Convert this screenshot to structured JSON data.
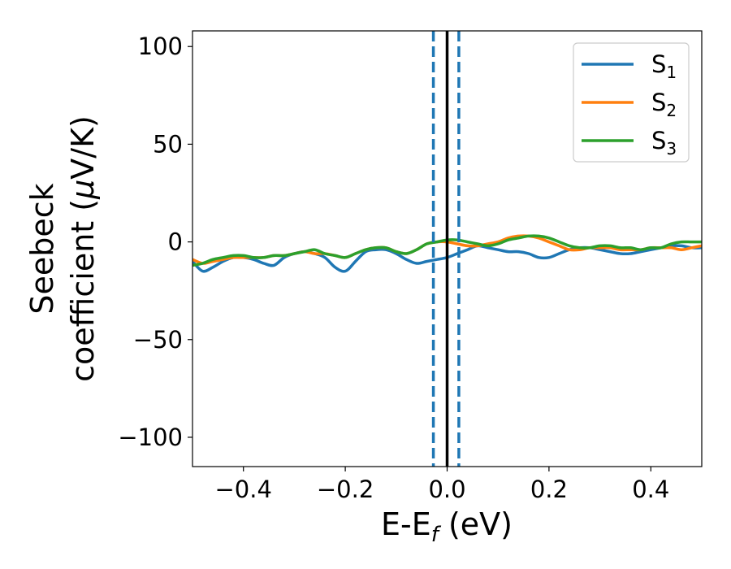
{
  "chart_data": {
    "type": "line",
    "title": "",
    "xlabel": {
      "main": "E-E",
      "sub": "f",
      "unit": " (eV)"
    },
    "ylabel": {
      "line1": "Seebeck",
      "line2": "coefficient  (",
      "mu": "μ",
      "line2_end": "V/K)"
    },
    "xlim": [
      -0.5,
      0.5
    ],
    "ylim": [
      -115,
      108
    ],
    "xticks": [
      -0.4,
      -0.2,
      0.0,
      0.2,
      0.4
    ],
    "xtick_labels": [
      "−0.4",
      "−0.2",
      "0.0",
      "0.2",
      "0.4"
    ],
    "yticks": [
      100,
      50,
      0,
      -50,
      -100
    ],
    "ytick_labels": [
      "100",
      "50",
      "0",
      "−50",
      "−100"
    ],
    "grid": false,
    "legend_position": "top-right",
    "vertical_lines": [
      {
        "x": -0.027,
        "color": "#1f77b4",
        "style": "dashed"
      },
      {
        "x": 0.0,
        "color": "#000000",
        "style": "solid"
      },
      {
        "x": 0.023,
        "color": "#1f77b4",
        "style": "dashed"
      }
    ],
    "series": [
      {
        "name": "S",
        "sub": "1",
        "color": "#1f77b4",
        "x": [
          -0.5,
          -0.48,
          -0.46,
          -0.44,
          -0.42,
          -0.4,
          -0.38,
          -0.36,
          -0.34,
          -0.32,
          -0.3,
          -0.28,
          -0.26,
          -0.24,
          -0.22,
          -0.2,
          -0.18,
          -0.16,
          -0.14,
          -0.12,
          -0.1,
          -0.08,
          -0.06,
          -0.04,
          -0.02,
          0.0,
          0.02,
          0.04,
          0.06,
          0.08,
          0.1,
          0.12,
          0.14,
          0.16,
          0.18,
          0.2,
          0.22,
          0.24,
          0.26,
          0.28,
          0.3,
          0.32,
          0.34,
          0.36,
          0.38,
          0.4,
          0.42,
          0.44,
          0.46,
          0.48,
          0.5
        ],
        "y": [
          -10,
          -15,
          -13,
          -10,
          -8,
          -8,
          -9,
          -11,
          -12,
          -8,
          -6,
          -5,
          -6,
          -8,
          -13,
          -15,
          -10,
          -5,
          -4,
          -4,
          -6,
          -9,
          -11,
          -10,
          -9,
          -8,
          -6,
          -4,
          -2,
          -3,
          -4,
          -5,
          -5,
          -6,
          -8,
          -8,
          -6,
          -4,
          -3,
          -3,
          -4,
          -5,
          -6,
          -6,
          -5,
          -4,
          -3,
          -2,
          -2,
          -3,
          -3
        ]
      },
      {
        "name": "S",
        "sub": "2",
        "color": "#ff7f0e",
        "x": [
          -0.5,
          -0.48,
          -0.46,
          -0.44,
          -0.42,
          -0.4,
          -0.38,
          -0.36,
          -0.34,
          -0.32,
          -0.3,
          -0.28,
          -0.26,
          -0.24,
          -0.22,
          -0.2,
          -0.18,
          -0.16,
          -0.14,
          -0.12,
          -0.1,
          -0.08,
          -0.06,
          -0.04,
          -0.02,
          0.0,
          0.02,
          0.04,
          0.06,
          0.08,
          0.1,
          0.12,
          0.14,
          0.16,
          0.18,
          0.2,
          0.22,
          0.24,
          0.26,
          0.28,
          0.3,
          0.32,
          0.34,
          0.36,
          0.38,
          0.4,
          0.42,
          0.44,
          0.46,
          0.48,
          0.5
        ],
        "y": [
          -9,
          -11,
          -10,
          -9,
          -8,
          -8,
          -8,
          -8,
          -7,
          -7,
          -6,
          -5,
          -6,
          -6,
          -7,
          -8,
          -6,
          -4,
          -3,
          -3,
          -5,
          -6,
          -4,
          -1,
          0,
          0,
          -1,
          -2,
          -2,
          -1,
          0,
          2,
          3,
          3,
          2,
          0,
          -2,
          -4,
          -4,
          -3,
          -3,
          -3,
          -4,
          -4,
          -4,
          -3,
          -3,
          -3,
          -4,
          -3,
          -2
        ]
      },
      {
        "name": "S",
        "sub": "3",
        "color": "#2ca02c",
        "x": [
          -0.5,
          -0.48,
          -0.46,
          -0.44,
          -0.42,
          -0.4,
          -0.38,
          -0.36,
          -0.34,
          -0.32,
          -0.3,
          -0.28,
          -0.26,
          -0.24,
          -0.22,
          -0.2,
          -0.18,
          -0.16,
          -0.14,
          -0.12,
          -0.1,
          -0.08,
          -0.06,
          -0.04,
          -0.02,
          0.0,
          0.02,
          0.04,
          0.06,
          0.08,
          0.1,
          0.12,
          0.14,
          0.16,
          0.18,
          0.2,
          0.22,
          0.24,
          0.26,
          0.28,
          0.3,
          0.32,
          0.34,
          0.36,
          0.38,
          0.4,
          0.42,
          0.44,
          0.46,
          0.48,
          0.5
        ],
        "y": [
          -12,
          -11,
          -9,
          -8,
          -7,
          -7,
          -8,
          -8,
          -7,
          -7,
          -6,
          -5,
          -4,
          -6,
          -7,
          -8,
          -6,
          -4,
          -3,
          -3,
          -5,
          -6,
          -4,
          -1,
          0,
          1,
          1,
          0,
          -1,
          -2,
          -1,
          1,
          2,
          3,
          3,
          2,
          0,
          -2,
          -3,
          -3,
          -2,
          -2,
          -3,
          -3,
          -4,
          -3,
          -3,
          -1,
          0,
          0,
          0
        ]
      }
    ]
  }
}
